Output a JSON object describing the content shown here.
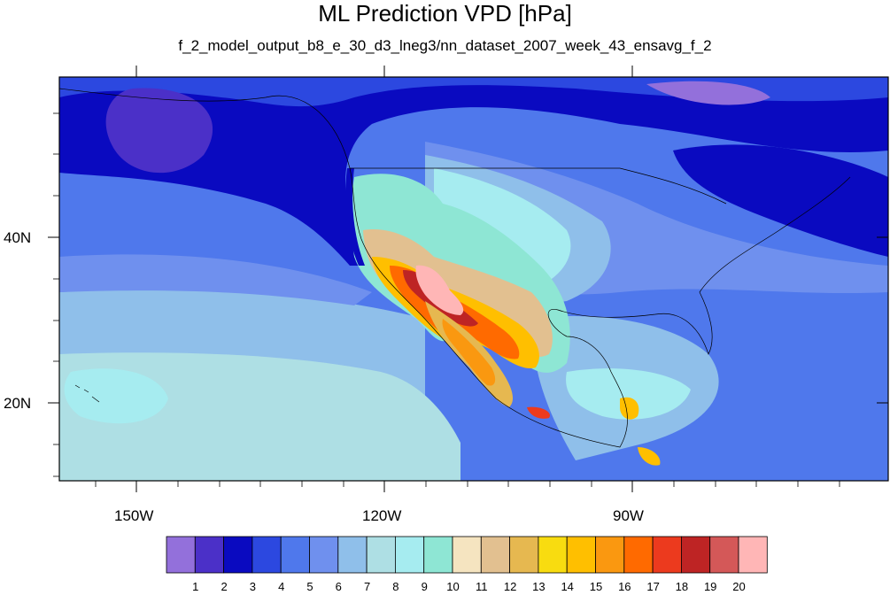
{
  "title": "ML Prediction VPD [hPa]",
  "subtitle": "f_2_model_output_b8_e_30_d3_lneg3/nn_dataset_2007_week_43_ensavg_f_2",
  "axes": {
    "lon_labels": [
      "150W",
      "120W",
      "90W"
    ],
    "lat_labels": [
      "40N",
      "20N"
    ]
  },
  "colorbar": {
    "colors": [
      "#9370db",
      "#4b30c8",
      "#0a0ac0",
      "#2c48e0",
      "#4f78ec",
      "#6f90ee",
      "#8fbfea",
      "#aedfe4",
      "#a6ecf0",
      "#8ee6d4",
      "#f5e4c0",
      "#e2c090",
      "#e6b850",
      "#f8dc10",
      "#ffbf00",
      "#fa9810",
      "#ff6a00",
      "#ec3a1e",
      "#be2424",
      "#d45858",
      "#ffb6b6"
    ],
    "labels": [
      "1",
      "2",
      "3",
      "4",
      "5",
      "6",
      "7",
      "8",
      "9",
      "10",
      "11",
      "12",
      "13",
      "14",
      "15",
      "16",
      "17",
      "18",
      "19",
      "20"
    ]
  }
}
